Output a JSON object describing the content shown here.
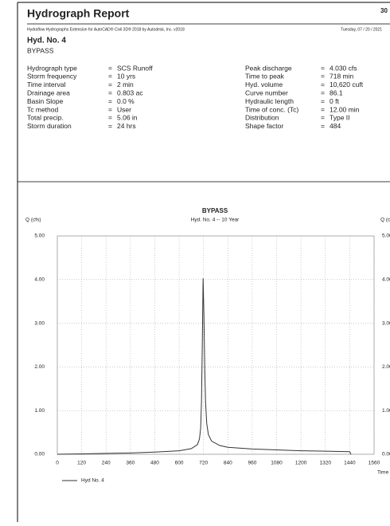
{
  "header": {
    "title": "Hydrograph Report",
    "page": "30",
    "software": "Hydraflow Hydrographs Extension for AutoCAD® Civil 3D® 2018 by Autodesk, Inc. v2018",
    "date": "Tuesday, 07 / 20 / 2021"
  },
  "hydrograph": {
    "number": "Hyd. No. 4",
    "name": "BYPASS"
  },
  "separator": "=",
  "parameters_left": [
    {
      "label": "Hydrograph type",
      "value": "SCS Runoff"
    },
    {
      "label": "Storm frequency",
      "value": "10 yrs"
    },
    {
      "label": "Time interval",
      "value": "2 min"
    },
    {
      "label": "Drainage area",
      "value": "0.803 ac"
    },
    {
      "label": "Basin Slope",
      "value": "0.0 %"
    },
    {
      "label": "Tc method",
      "value": "User"
    },
    {
      "label": "Total precip.",
      "value": "5.06 in"
    },
    {
      "label": "Storm duration",
      "value": "24 hrs"
    }
  ],
  "parameters_right": [
    {
      "label": "Peak discharge",
      "value": "4.030 cfs"
    },
    {
      "label": "Time to peak",
      "value": "718 min"
    },
    {
      "label": "Hyd. volume",
      "value": "10,620 cuft"
    },
    {
      "label": "Curve number",
      "value": "86.1"
    },
    {
      "label": "Hydraulic length",
      "value": "0 ft"
    },
    {
      "label": "Time of conc. (Tc)",
      "value": "12.00 min"
    },
    {
      "label": "Distribution",
      "value": "Type II"
    },
    {
      "label": "Shape factor",
      "value": "484"
    }
  ],
  "chart_data": {
    "type": "line",
    "title": "BYPASS",
    "subtitle": "Hyd. No. 4 -- 10 Year",
    "y_label": "Q (cfs)",
    "x_label": "Time (min)",
    "x": [
      0,
      120,
      240,
      360,
      480,
      600,
      660,
      690,
      700,
      706,
      710,
      714,
      718,
      722,
      726,
      730,
      736,
      744,
      760,
      800,
      840,
      960,
      1080,
      1200,
      1320,
      1440,
      1446
    ],
    "series": [
      {
        "name": "Hyd No. 4",
        "color": "#333333",
        "values": [
          0,
          0.01,
          0.02,
          0.03,
          0.05,
          0.08,
          0.13,
          0.22,
          0.35,
          0.6,
          1.2,
          2.5,
          4.03,
          3.2,
          2.0,
          1.2,
          0.7,
          0.45,
          0.3,
          0.2,
          0.16,
          0.12,
          0.1,
          0.08,
          0.07,
          0.06,
          0
        ]
      }
    ],
    "xlim": [
      0,
      1560
    ],
    "xticks": [
      0,
      120,
      240,
      360,
      480,
      600,
      720,
      840,
      960,
      1080,
      1200,
      1320,
      1440,
      1560
    ],
    "ylim": [
      0,
      5
    ],
    "yticks": [
      {
        "value": 0,
        "label": "0.00"
      },
      {
        "value": 1,
        "label": "1.00"
      },
      {
        "value": 2,
        "label": "2.00"
      },
      {
        "value": 3,
        "label": "3.00"
      },
      {
        "value": 4,
        "label": "4.00"
      },
      {
        "value": 5,
        "label": "5.00"
      }
    ],
    "grid": true
  }
}
